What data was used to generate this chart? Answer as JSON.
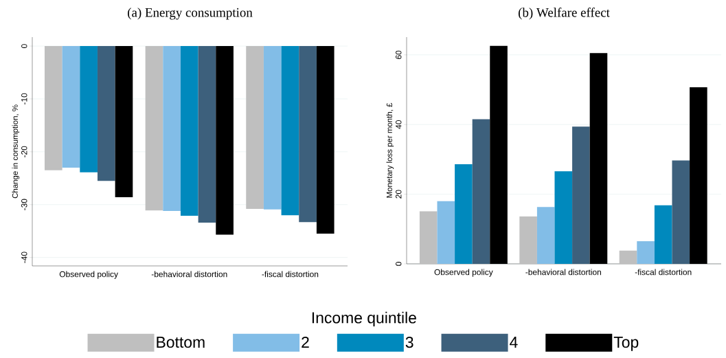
{
  "chart_data": [
    {
      "type": "bar",
      "title": "(a)  Energy consumption",
      "ylabel": "Change in consumption, %",
      "categories": [
        "Observed policy",
        "-behavioral distortion",
        "-fiscal distortion"
      ],
      "series": [
        {
          "name": "Bottom",
          "color": "#bfbfbf",
          "values": [
            -23.5,
            -31.1,
            -30.8
          ]
        },
        {
          "name": "2",
          "color": "#82bde7",
          "values": [
            -23.0,
            -31.2,
            -30.9
          ]
        },
        {
          "name": "3",
          "color": "#0089bd",
          "values": [
            -23.9,
            -32.1,
            -32.0
          ]
        },
        {
          "name": "4",
          "color": "#3d607c",
          "values": [
            -25.5,
            -33.4,
            -33.3
          ]
        },
        {
          "name": "Top",
          "color": "#000000",
          "values": [
            -28.6,
            -35.7,
            -35.5
          ]
        }
      ],
      "ylim": [
        -41.6,
        1.7
      ],
      "yticks": [
        -40,
        -30,
        -20,
        -10,
        0
      ],
      "grid": "y",
      "legend": "bottom",
      "legend_title": "Income quintile"
    },
    {
      "type": "bar",
      "title": "(b)  Welfare effect",
      "ylabel": "Monetary loss per month, £",
      "categories": [
        "Observed policy",
        "-behavioral distortion",
        "-fiscal distortion"
      ],
      "series": [
        {
          "color": "#bfbfbf",
          "values": [
            15.1,
            13.6,
            3.8
          ]
        },
        {
          "color": "#82bde7",
          "values": [
            18.0,
            16.3,
            6.5
          ]
        },
        {
          "color": "#0089bd",
          "values": [
            28.6,
            26.6,
            16.8
          ]
        },
        {
          "color": "#3d607c",
          "values": [
            41.5,
            39.4,
            29.7
          ]
        },
        {
          "color": "#000000",
          "values": [
            62.6,
            60.5,
            50.7
          ]
        }
      ],
      "ylim": [
        0,
        65.1
      ],
      "yticks": [
        0,
        20,
        40,
        60
      ],
      "grid": "y"
    }
  ]
}
